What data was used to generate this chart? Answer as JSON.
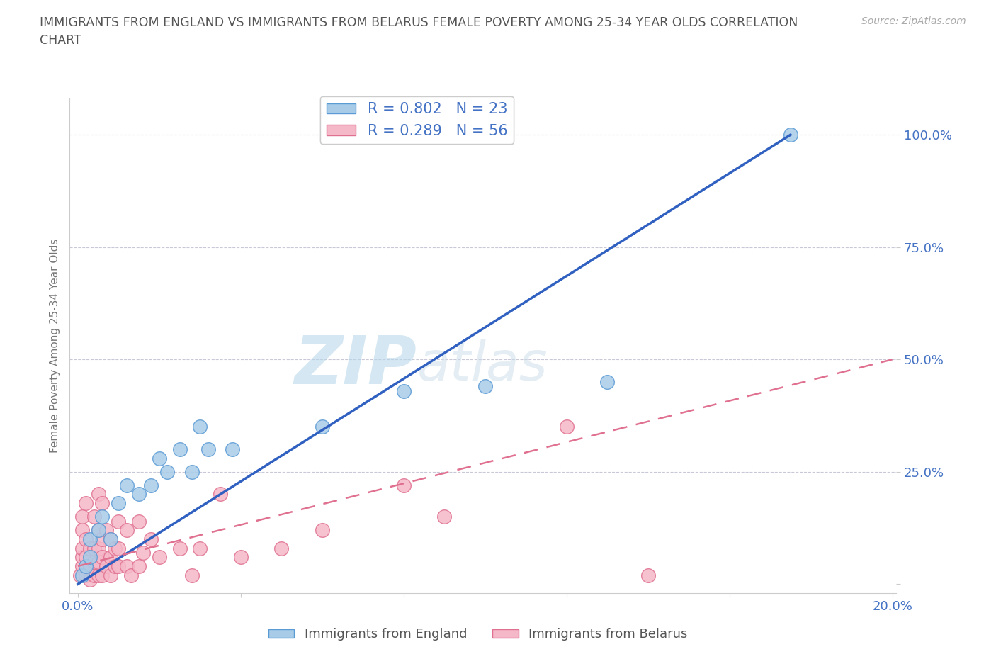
{
  "title_line1": "IMMIGRANTS FROM ENGLAND VS IMMIGRANTS FROM BELARUS FEMALE POVERTY AMONG 25-34 YEAR OLDS CORRELATION",
  "title_line2": "CHART",
  "source_text": "Source: ZipAtlas.com",
  "ylabel": "Female Poverty Among 25-34 Year Olds",
  "xlim": [
    -0.002,
    0.201
  ],
  "ylim": [
    -0.02,
    1.08
  ],
  "watermark_zip": "ZIP",
  "watermark_atlas": "atlas",
  "watermark_color_zip": "#b8d8ea",
  "watermark_color_atlas": "#c8dde8",
  "background_color": "#ffffff",
  "england_color": "#a8cce8",
  "england_edge_color": "#5b9bd5",
  "belarus_color": "#f5b8c8",
  "belarus_edge_color": "#e07090",
  "england_line_color": "#3060c0",
  "belarus_line_color": "#e07090",
  "grid_color": "#c8c8d8",
  "title_color": "#555555",
  "tick_color": "#4472C4",
  "legend_england_label": "R = 0.802   N = 23",
  "legend_belarus_label": "R = 0.289   N = 56",
  "england_scatter_x": [
    0.001,
    0.002,
    0.003,
    0.003,
    0.005,
    0.006,
    0.008,
    0.01,
    0.012,
    0.015,
    0.018,
    0.02,
    0.022,
    0.025,
    0.028,
    0.03,
    0.032,
    0.038,
    0.06,
    0.08,
    0.1,
    0.13,
    0.175
  ],
  "england_scatter_y": [
    0.02,
    0.04,
    0.06,
    0.1,
    0.12,
    0.15,
    0.1,
    0.18,
    0.22,
    0.2,
    0.22,
    0.28,
    0.25,
    0.3,
    0.25,
    0.35,
    0.3,
    0.3,
    0.35,
    0.43,
    0.44,
    0.45,
    1.0
  ],
  "belarus_scatter_x": [
    0.0005,
    0.001,
    0.001,
    0.001,
    0.001,
    0.001,
    0.002,
    0.002,
    0.002,
    0.002,
    0.002,
    0.003,
    0.003,
    0.003,
    0.004,
    0.004,
    0.004,
    0.004,
    0.005,
    0.005,
    0.005,
    0.005,
    0.005,
    0.006,
    0.006,
    0.006,
    0.006,
    0.007,
    0.007,
    0.008,
    0.008,
    0.008,
    0.009,
    0.009,
    0.01,
    0.01,
    0.01,
    0.012,
    0.012,
    0.013,
    0.015,
    0.015,
    0.016,
    0.018,
    0.02,
    0.025,
    0.028,
    0.03,
    0.035,
    0.04,
    0.05,
    0.06,
    0.08,
    0.09,
    0.12,
    0.14
  ],
  "belarus_scatter_y": [
    0.02,
    0.04,
    0.06,
    0.08,
    0.12,
    0.15,
    0.02,
    0.04,
    0.06,
    0.1,
    0.18,
    0.01,
    0.04,
    0.08,
    0.02,
    0.05,
    0.08,
    0.15,
    0.02,
    0.05,
    0.08,
    0.12,
    0.2,
    0.02,
    0.06,
    0.1,
    0.18,
    0.04,
    0.12,
    0.02,
    0.06,
    0.1,
    0.04,
    0.08,
    0.04,
    0.08,
    0.14,
    0.04,
    0.12,
    0.02,
    0.04,
    0.14,
    0.07,
    0.1,
    0.06,
    0.08,
    0.02,
    0.08,
    0.2,
    0.06,
    0.08,
    0.12,
    0.22,
    0.15,
    0.35,
    0.02
  ],
  "england_line_x": [
    0.0,
    0.175
  ],
  "england_line_y": [
    0.0,
    1.0
  ],
  "belarus_line_x": [
    0.0,
    0.2
  ],
  "belarus_line_y": [
    0.04,
    0.5
  ]
}
